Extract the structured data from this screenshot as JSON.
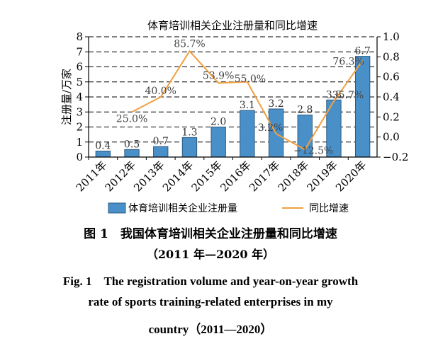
{
  "chart_data": {
    "type": "bar+line",
    "title": "体育培训相关企业注册量和同比增速",
    "categories": [
      "2011年",
      "2012年",
      "2013年",
      "2014年",
      "2015年",
      "2016年",
      "2017年",
      "2018年",
      "2019年",
      "2020年"
    ],
    "ylabel_left": "注册量/万家",
    "yticks_left": [
      "0",
      "1",
      "2",
      "3",
      "4",
      "5",
      "6",
      "7",
      "8"
    ],
    "ylim_left": [
      0,
      8
    ],
    "yticks_right": [
      "−0.2",
      "0.0",
      "0.2",
      "0.4",
      "0.6",
      "0.8",
      "1.0"
    ],
    "ylim_right": [
      -0.2,
      1.0
    ],
    "grid": "horizontal dashed",
    "legend_position": "bottom",
    "series": [
      {
        "name": "体育培训相关企业注册量",
        "type": "bar",
        "axis": "left",
        "color": "#4a90c8",
        "values": [
          0.4,
          0.5,
          0.7,
          1.3,
          2.0,
          3.1,
          3.2,
          2.8,
          3.8,
          6.7
        ],
        "labels": [
          "0.4",
          "0.5",
          "0.7",
          "1.3",
          "2.0",
          "3.1",
          "3.2",
          "2.8",
          "3.8",
          "6.7"
        ]
      },
      {
        "name": "同比增速",
        "type": "line",
        "axis": "right",
        "color": "#f0a040",
        "x": [
          "2012年",
          "2013年",
          "2014年",
          "2015年",
          "2016年",
          "2017年",
          "2018年",
          "2019年",
          "2020年"
        ],
        "values": [
          0.25,
          0.4,
          0.857,
          0.539,
          0.55,
          0.032,
          -0.125,
          0.357,
          0.763
        ],
        "labels": [
          "25.0%",
          "40.0%",
          "85.7%",
          "53.9%",
          "55.0%",
          "3.2%",
          "−12.5%",
          "35.7%",
          "76.3%"
        ]
      }
    ]
  },
  "caption": {
    "zh_line1": "图 1　我国体育培训相关企业注册量和同比增速",
    "zh_line2": "（2011 年—2020 年）",
    "en_line1": "Fig. 1　The registration volume and year-on-year growth",
    "en_line2": "rate of sports training-related enterprises in my",
    "en_line3": "country（2011—2020）"
  }
}
